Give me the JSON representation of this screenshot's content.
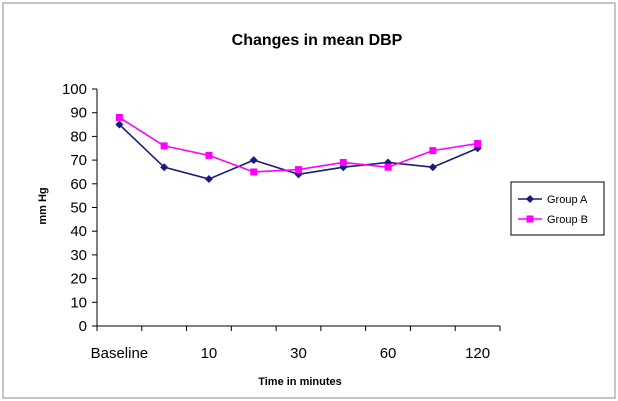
{
  "chart_data": {
    "type": "line",
    "title": "Changes in mean DBP",
    "xlabel": "Time in minutes",
    "ylabel": "mm Hg",
    "ylim": [
      0,
      100
    ],
    "yticks": [
      0,
      10,
      20,
      30,
      40,
      50,
      60,
      70,
      80,
      90,
      100
    ],
    "x_tick_labels": [
      "Baseline",
      "10",
      "30",
      "60",
      "120"
    ],
    "grid": false,
    "legend_position": "right",
    "series": [
      {
        "name": "Group A",
        "color": "#1a1a7a",
        "marker": "diamond",
        "values": [
          85,
          67,
          62,
          70,
          64,
          67,
          69,
          67,
          75
        ]
      },
      {
        "name": "Group B",
        "color": "#ff00ff",
        "marker": "square",
        "values": [
          88,
          76,
          72,
          65,
          66,
          69,
          67,
          74,
          77
        ]
      }
    ]
  }
}
